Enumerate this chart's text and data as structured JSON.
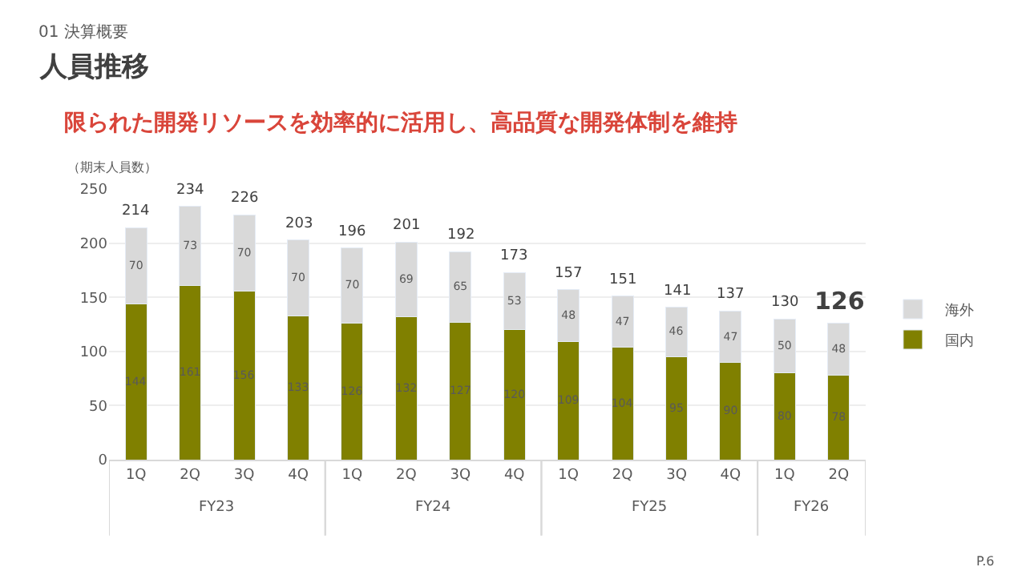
{
  "chart_data": {
    "type": "bar",
    "title": "人員推移",
    "subtitle": "限られた開発リソースを効率的に活用し、高品質な開発体制を維持",
    "ylabel": "（期末人員数）",
    "categories": [
      "1Q",
      "2Q",
      "3Q",
      "4Q",
      "1Q",
      "2Q",
      "3Q",
      "4Q",
      "1Q",
      "2Q",
      "3Q",
      "4Q",
      "1Q",
      "2Q"
    ],
    "series": [
      {
        "name": "国内",
        "color": "#808000",
        "values": [
          144,
          161,
          156,
          133,
          126,
          132,
          127,
          120,
          109,
          104,
          95,
          90,
          80,
          78
        ]
      },
      {
        "name": "海外",
        "color": "#d9d9d9",
        "values": [
          70,
          73,
          70,
          70,
          70,
          69,
          65,
          53,
          48,
          47,
          46,
          47,
          50,
          48
        ]
      }
    ],
    "stacked": true,
    "data_labels": true,
    "totals": [
      "214",
      "234",
      "226",
      "203",
      "196",
      "201",
      "192",
      "173",
      "157",
      "151",
      "141",
      "137",
      "130",
      "126"
    ],
    "ylim": [
      0,
      250
    ],
    "yticks": [
      0,
      50,
      100,
      150,
      200,
      250
    ],
    "grid": "y",
    "legend": "right",
    "annotations": [
      "FY23",
      "FY24",
      "FY25",
      "FY26",
      "01 決算概要",
      "P.6"
    ]
  }
}
